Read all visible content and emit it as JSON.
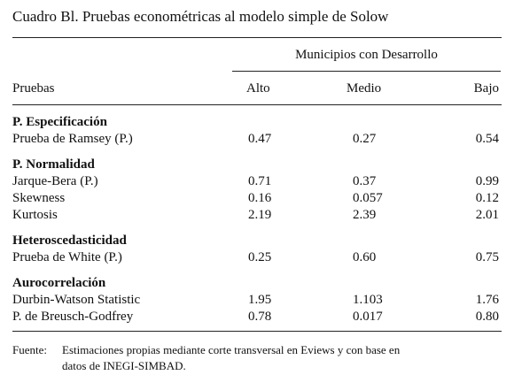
{
  "title": "Cuadro Bl. Pruebas econométricas al modelo simple de Solow",
  "table": {
    "column_group": "Municipios con Desarrollo",
    "columns": [
      "Pruebas",
      "Alto",
      "Medio",
      "Bajo"
    ],
    "sections": [
      {
        "heading": "P. Especificación",
        "rows": [
          [
            "Prueba de Ramsey (P.)",
            "0.47",
            "0.27",
            "0.54"
          ]
        ]
      },
      {
        "heading": "P. Normalidad",
        "rows": [
          [
            "Jarque-Bera (P.)",
            "0.71",
            "0.37",
            "0.99"
          ],
          [
            "Skewness",
            "0.16",
            "0.057",
            "0.12"
          ],
          [
            "Kurtosis",
            "2.19",
            "2.39",
            "2.01"
          ]
        ]
      },
      {
        "heading": "Heteroscedasticidad",
        "rows": [
          [
            "Prueba de White (P.)",
            "0.25",
            "0.60",
            "0.75"
          ]
        ]
      },
      {
        "heading": "Aurocorrelación",
        "rows": [
          [
            "Durbin-Watson Statistic",
            "1.95",
            "1.103",
            "1.76"
          ],
          [
            "P. de Breusch-Godfrey",
            "0.78",
            "0.017",
            "0.80"
          ]
        ]
      }
    ]
  },
  "footnote": {
    "label": "Fuente:",
    "lines": [
      "Estimaciones propias mediante corte transversal en Eviews y con base en",
      "datos de INEGI-SIMBAD."
    ]
  }
}
